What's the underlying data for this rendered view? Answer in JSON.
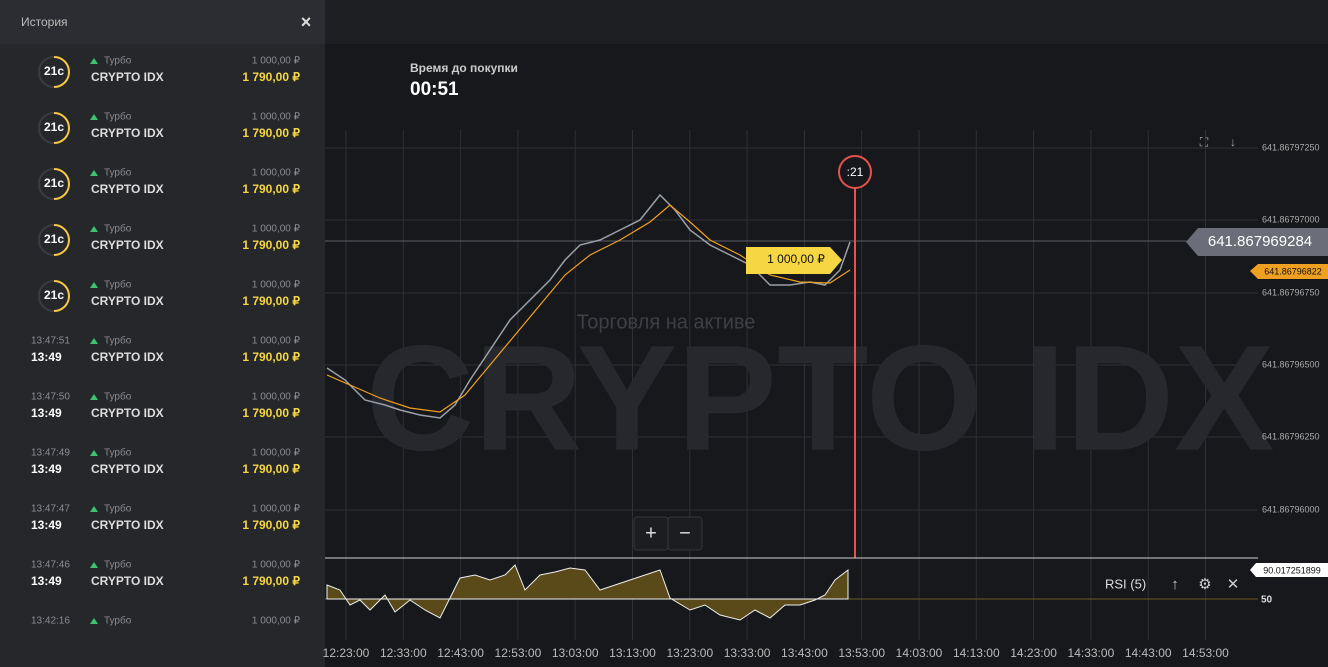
{
  "header": {
    "title": "История",
    "close": "×"
  },
  "history": {
    "items": [
      {
        "timer": "21с",
        "type": "Турбо",
        "asset": "CRYPTO IDX",
        "amount": "1 000,00 ₽",
        "payout": "1 790,00 ₽"
      },
      {
        "timer": "21с",
        "type": "Турбо",
        "asset": "CRYPTO IDX",
        "amount": "1 000,00 ₽",
        "payout": "1 790,00 ₽"
      },
      {
        "timer": "21с",
        "type": "Турбо",
        "asset": "CRYPTO IDX",
        "amount": "1 000,00 ₽",
        "payout": "1 790,00 ₽"
      },
      {
        "timer": "21с",
        "type": "Турбо",
        "asset": "CRYPTO IDX",
        "amount": "1 000,00 ₽",
        "payout": "1 790,00 ₽"
      },
      {
        "timer": "21с",
        "type": "Турбо",
        "asset": "CRYPTO IDX",
        "amount": "1 000,00 ₽",
        "payout": "1 790,00 ₽"
      },
      {
        "open_time": "13:47:51",
        "close_time": "13:49",
        "type": "Турбо",
        "asset": "CRYPTO IDX",
        "amount": "1 000,00 ₽",
        "payout": "1 790,00 ₽"
      },
      {
        "open_time": "13:47:50",
        "close_time": "13:49",
        "type": "Турбо",
        "asset": "CRYPTO IDX",
        "amount": "1 000,00 ₽",
        "payout": "1 790,00 ₽"
      },
      {
        "open_time": "13:47:49",
        "close_time": "13:49",
        "type": "Турбо",
        "asset": "CRYPTO IDX",
        "amount": "1 000,00 ₽",
        "payout": "1 790,00 ₽"
      },
      {
        "open_time": "13:47:47",
        "close_time": "13:49",
        "type": "Турбо",
        "asset": "CRYPTO IDX",
        "amount": "1 000,00 ₽",
        "payout": "1 790,00 ₽"
      },
      {
        "open_time": "13:47:46",
        "close_time": "13:49",
        "type": "Турбо",
        "asset": "CRYPTO IDX",
        "amount": "1 000,00 ₽",
        "payout": "1 790,00 ₽"
      },
      {
        "open_time": "13:42:16",
        "type": "Турбо",
        "amount": "1 000,00 ₽"
      }
    ]
  },
  "timer": {
    "label": "Время до покупки",
    "value": "00:51"
  },
  "chart": {
    "watermark": "CRYPTO IDX",
    "status": "Торговля на активе",
    "price_labels": [
      "641.86797250",
      "641.86797000",
      "641.86796750",
      "641.86796500",
      "641.86796250",
      "641.86796000"
    ],
    "current_price": "641.867969284",
    "open_price": "641.86796822",
    "trade_amount": "1 000,00 ₽",
    "countdown": ":21",
    "time_labels": [
      "12:23:00",
      "12:33:00",
      "12:43:00",
      "12:53:00",
      "13:03:00",
      "13:13:00",
      "13:23:00",
      "13:33:00",
      "13:43:00",
      "13:53:00",
      "14:03:00",
      "14:13:00",
      "14:23:00",
      "14:33:00",
      "14:43:00",
      "14:53:00"
    ],
    "zoom_in": "+",
    "zoom_out": "−",
    "indicator": {
      "name": "RSI (5)",
      "value": "90.017251899",
      "level": "50"
    }
  }
}
